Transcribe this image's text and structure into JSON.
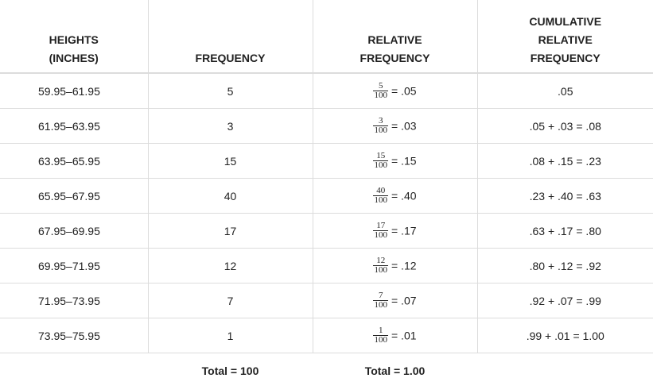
{
  "headers": {
    "heights": [
      "HEIGHTS",
      "(INCHES)"
    ],
    "frequency": [
      "FREQUENCY"
    ],
    "relative": [
      "RELATIVE",
      "FREQUENCY"
    ],
    "cumulative": [
      "CUMULATIVE",
      "RELATIVE",
      "FREQUENCY"
    ]
  },
  "rows": [
    {
      "interval": "59.95–61.95",
      "freq": "5",
      "num": "5",
      "den": "100",
      "rel": "= .05",
      "cum": ".05"
    },
    {
      "interval": "61.95–63.95",
      "freq": "3",
      "num": "3",
      "den": "100",
      "rel": "= .03",
      "cum": ".05 + .03 = .08"
    },
    {
      "interval": "63.95–65.95",
      "freq": "15",
      "num": "15",
      "den": "100",
      "rel": "= .15",
      "cum": ".08 + .15 = .23"
    },
    {
      "interval": "65.95–67.95",
      "freq": "40",
      "num": "40",
      "den": "100",
      "rel": "= .40",
      "cum": ".23 + .40 = .63"
    },
    {
      "interval": "67.95–69.95",
      "freq": "17",
      "num": "17",
      "den": "100",
      "rel": "= .17",
      "cum": ".63 + .17 = .80"
    },
    {
      "interval": "69.95–71.95",
      "freq": "12",
      "num": "12",
      "den": "100",
      "rel": "= .12",
      "cum": ".80 + .12 = .92"
    },
    {
      "interval": "71.95–73.95",
      "freq": "7",
      "num": "7",
      "den": "100",
      "rel": "= .07",
      "cum": ".92 + .07 = .99"
    },
    {
      "interval": "73.95–75.95",
      "freq": "1",
      "num": "1",
      "den": "100",
      "rel": "= .01",
      "cum": ".99 + .01 = 1.00"
    }
  ],
  "totals": {
    "frequency": "Total = 100",
    "relative": "Total = 1.00"
  }
}
